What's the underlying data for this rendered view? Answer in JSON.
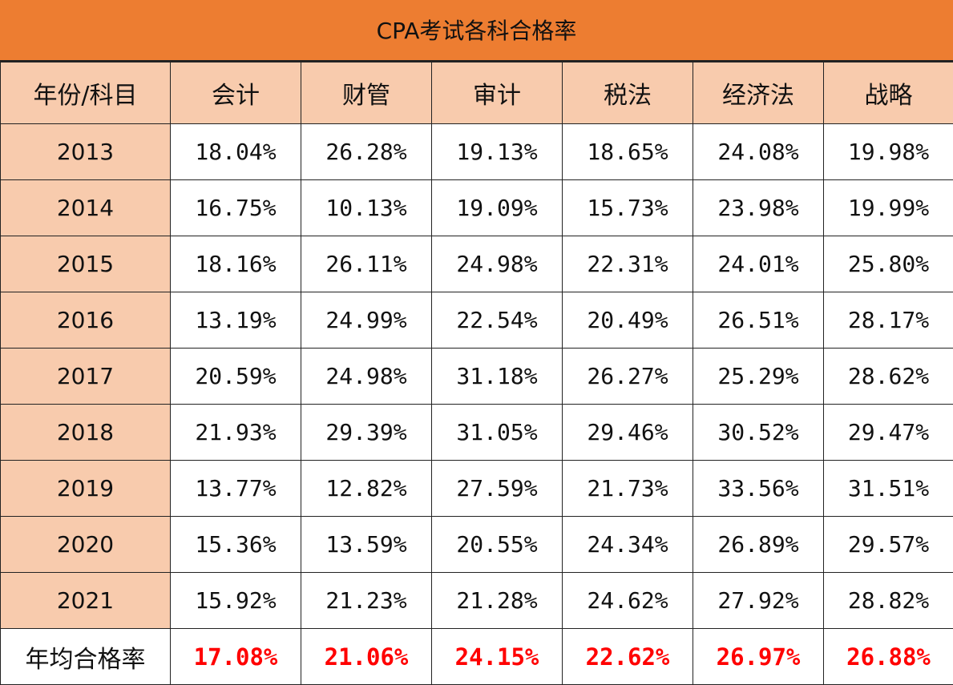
{
  "title": "CPA考试各科合格率",
  "header": [
    "年份/科目",
    "会计",
    "财管",
    "审计",
    "税法",
    "经济法",
    "战略"
  ],
  "rows": [
    {
      "year": "2013",
      "values": [
        "18.04%",
        "26.28%",
        "19.13%",
        "18.65%",
        "24.08%",
        "19.98%"
      ]
    },
    {
      "year": "2014",
      "values": [
        "16.75%",
        "10.13%",
        "19.09%",
        "15.73%",
        "23.98%",
        "19.99%"
      ]
    },
    {
      "year": "2015",
      "values": [
        "18.16%",
        "26.11%",
        "24.98%",
        "22.31%",
        "24.01%",
        "25.80%"
      ]
    },
    {
      "year": "2016",
      "values": [
        "13.19%",
        "24.99%",
        "22.54%",
        "20.49%",
        "26.51%",
        "28.17%"
      ]
    },
    {
      "year": "2017",
      "values": [
        "20.59%",
        "24.98%",
        "31.18%",
        "26.27%",
        "25.29%",
        "28.62%"
      ]
    },
    {
      "year": "2018",
      "values": [
        "21.93%",
        "29.39%",
        "31.05%",
        "29.46%",
        "30.52%",
        "29.47%"
      ]
    },
    {
      "year": "2019",
      "values": [
        "13.77%",
        "12.82%",
        "27.59%",
        "21.73%",
        "33.56%",
        "31.51%"
      ]
    },
    {
      "year": "2020",
      "values": [
        "15.36%",
        "13.59%",
        "20.55%",
        "24.34%",
        "26.89%",
        "29.57%"
      ]
    },
    {
      "year": "2021",
      "values": [
        "15.92%",
        "21.23%",
        "21.28%",
        "24.62%",
        "27.92%",
        "28.82%"
      ]
    }
  ],
  "average": {
    "label": "年均合格率",
    "values": [
      "17.08%",
      "21.06%",
      "24.15%",
      "22.62%",
      "26.97%",
      "26.88%"
    ]
  },
  "colors": {
    "title_bg": "#ED7D31",
    "header_bg": "#F8CBAD",
    "average_text": "#FF0000"
  }
}
